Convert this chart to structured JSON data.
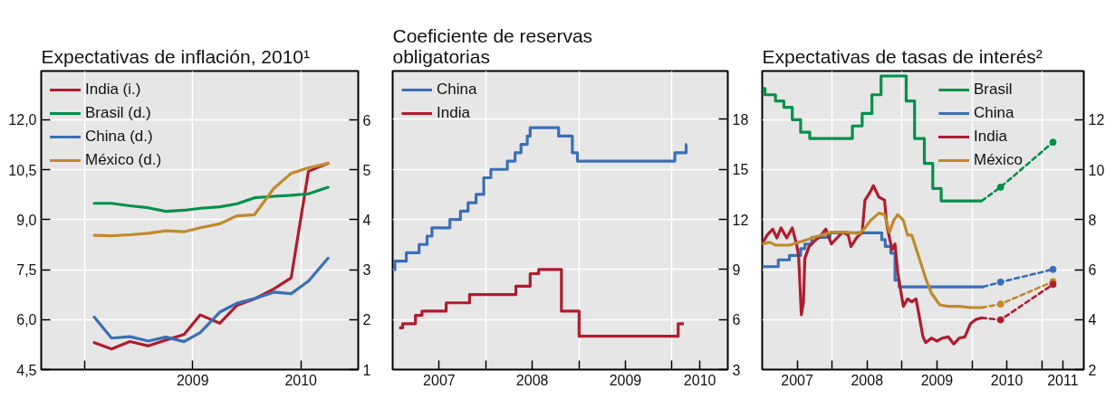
{
  "chart_data": [
    {
      "type": "line",
      "title": "Expectativas de inflación, 2010¹",
      "x": [
        2008.09,
        2008.25,
        2008.42,
        2008.59,
        2008.75,
        2008.92,
        2009.07,
        2009.25,
        2009.41,
        2009.57,
        2009.75,
        2009.91,
        2010.07,
        2010.25
      ],
      "xlim": [
        2007.6,
        2010.53
      ],
      "xticks": [
        {
          "value": 2008,
          "label": null
        },
        2009,
        2010
      ],
      "ylim": [
        4.5,
        13.46
      ],
      "yticks": [
        {
          "value": 4.5,
          "label": "4,5"
        },
        {
          "value": 6.0,
          "label": "6,0"
        },
        {
          "value": 7.5,
          "label": "7,5"
        },
        {
          "value": 9.0,
          "label": "9,0"
        },
        {
          "value": 10.5,
          "label": "10,5"
        },
        {
          "value": 12.0,
          "label": "12,0"
        }
      ],
      "y2lim": [
        1,
        6.98
      ],
      "y2ticks": [
        1,
        2,
        3,
        4,
        5,
        6
      ],
      "grid": true,
      "legend": "top left",
      "series": [
        {
          "name": "India (i.)",
          "color": "#b01c2e",
          "values": [
            5.31,
            5.12,
            5.34,
            5.21,
            5.38,
            5.55,
            6.14,
            5.89,
            6.43,
            6.62,
            6.92,
            7.25,
            10.45,
            10.69
          ]
        },
        {
          "name": "Brasil (d.)",
          "color": "#00904a",
          "axis": "y2",
          "values": [
            4.33,
            4.33,
            4.28,
            4.24,
            4.17,
            4.19,
            4.23,
            4.26,
            4.32,
            4.44,
            4.47,
            4.49,
            4.52,
            4.65
          ]
        },
        {
          "name": "China (d.)",
          "color": "#3a6fb7",
          "axis": "y2",
          "values": [
            2.05,
            1.63,
            1.66,
            1.57,
            1.65,
            1.56,
            1.74,
            2.15,
            2.33,
            2.42,
            2.55,
            2.52,
            2.77,
            3.23
          ]
        },
        {
          "name": "México (d.)",
          "color": "#c08a2c",
          "axis": "y2",
          "values": [
            3.69,
            3.68,
            3.7,
            3.73,
            3.78,
            3.76,
            3.84,
            3.92,
            4.08,
            4.1,
            4.63,
            4.93,
            5.04,
            5.13
          ]
        }
      ]
    },
    {
      "type": "step",
      "title": "Coeficiente de reservas\nobligatorias",
      "xlim": [
        2007.0,
        2010.6
      ],
      "xticks": [
        {
          "value": 2008,
          "label": null
        },
        {
          "value": 2009,
          "label": null
        },
        {
          "value": 2010,
          "label": null
        },
        {
          "value": 2007.5,
          "label": "2007"
        },
        {
          "value": 2008.5,
          "label": "2008"
        },
        {
          "value": 2009.5,
          "label": "2009"
        },
        {
          "value": 2010.3,
          "label": "2010"
        }
      ],
      "ylim": [
        3,
        20.9
      ],
      "yticks": [
        3,
        6,
        9,
        12,
        15,
        18
      ],
      "grid": true,
      "legend": "top left",
      "series": [
        {
          "name": "China",
          "color": "#3a6fb7",
          "x": [
            2007.015,
            2007.024,
            2007.147,
            2007.284,
            2007.37,
            2007.422,
            2007.615,
            2007.728,
            2007.81,
            2007.896,
            2007.979,
            2008.055,
            2008.232,
            2008.315,
            2008.379,
            2008.446,
            2008.477,
            2008.783,
            2008.93,
            2008.985,
            2010.031,
            2010.153,
            2010.159
          ],
          "values": [
            9.0,
            9.5,
            10.0,
            10.5,
            11.0,
            11.5,
            12.0,
            12.5,
            13.0,
            13.5,
            14.5,
            15.0,
            15.5,
            16.0,
            16.5,
            17.0,
            17.5,
            17.0,
            16.0,
            15.5,
            16.0,
            16.5,
            16.5
          ]
        },
        {
          "name": "India",
          "color": "#b01c2e",
          "x": [
            2007.07,
            2007.107,
            2007.245,
            2007.315,
            2007.575,
            2007.826,
            2008.324,
            2008.477,
            2008.569,
            2008.813,
            2009.003,
            2010.067,
            2010.128
          ],
          "values": [
            5.5,
            5.75,
            6.25,
            6.5,
            7.0,
            7.5,
            8.0,
            8.75,
            9.0,
            6.5,
            5.0,
            5.75,
            5.75
          ]
        }
      ]
    },
    {
      "type": "line",
      "title": "Expectativas de tasas de interés²",
      "xlim": [
        2007.0,
        2011.6
      ],
      "xticks": [
        {
          "value": 2008,
          "label": null
        },
        {
          "value": 2009,
          "label": null
        },
        {
          "value": 2010,
          "label": null
        },
        {
          "value": 2011,
          "label": null
        },
        {
          "value": 2007.5,
          "label": "2007"
        },
        {
          "value": 2008.5,
          "label": "2008"
        },
        {
          "value": 2009.5,
          "label": "2009"
        },
        {
          "value": 2010.5,
          "label": "2010"
        },
        {
          "value": 2011.3,
          "label": "2011"
        }
      ],
      "ylim": [
        2,
        13.95
      ],
      "yticks": [
        2,
        4,
        6,
        8,
        10,
        12
      ],
      "grid": true,
      "legend": "top",
      "series": [
        {
          "name": "Brasil",
          "type": "step",
          "color": "#00904a",
          "x": [
            2007.0,
            2007.04,
            2007.19,
            2007.31,
            2007.43,
            2007.55,
            2007.68,
            2008.29,
            2008.43,
            2008.57,
            2008.7,
            2009.06,
            2009.18,
            2009.32,
            2009.44,
            2009.56,
            2010.14
          ],
          "values": [
            13.25,
            13.0,
            12.75,
            12.5,
            12.0,
            11.5,
            11.25,
            11.75,
            12.25,
            13.0,
            13.75,
            12.75,
            11.25,
            10.25,
            9.25,
            8.75,
            8.75
          ]
        },
        {
          "name": "China",
          "type": "step",
          "color": "#3a6fb7",
          "x": [
            2007.0,
            2007.23,
            2007.39,
            2007.55,
            2007.61,
            2007.71,
            2007.97,
            2008.71,
            2008.76,
            2008.84,
            2008.9,
            2008.96,
            2010.16
          ],
          "values": [
            6.12,
            6.39,
            6.57,
            6.84,
            7.02,
            7.29,
            7.47,
            7.2,
            6.93,
            6.66,
            5.58,
            5.31,
            5.31
          ]
        },
        {
          "name": "India",
          "color": "#b01c2e",
          "x": [
            2007.0,
            2007.07,
            2007.15,
            2007.21,
            2007.27,
            2007.35,
            2007.43,
            2007.49,
            2007.52,
            2007.56,
            2007.59,
            2007.61,
            2007.67,
            2007.75,
            2007.83,
            2007.91,
            2007.99,
            2008.07,
            2008.15,
            2008.23,
            2008.27,
            2008.35,
            2008.43,
            2008.47,
            2008.55,
            2008.59,
            2008.67,
            2008.75,
            2008.78,
            2008.82,
            2008.86,
            2008.9,
            2008.94,
            2008.98,
            2009.02,
            2009.08,
            2009.14,
            2009.2,
            2009.24,
            2009.3,
            2009.34,
            2009.42,
            2009.5,
            2009.58,
            2009.66,
            2009.74,
            2009.82,
            2009.9,
            2009.98,
            2010.06,
            2010.14
          ],
          "values": [
            7.03,
            7.38,
            7.62,
            7.27,
            7.67,
            7.27,
            7.67,
            7.03,
            6.57,
            4.19,
            4.71,
            6.45,
            6.92,
            7.15,
            7.33,
            7.62,
            7.03,
            7.27,
            7.5,
            7.38,
            6.92,
            7.27,
            7.5,
            8.78,
            9.13,
            9.36,
            8.9,
            8.78,
            7.85,
            7.27,
            6.8,
            7.03,
            5.87,
            5.17,
            4.53,
            4.83,
            4.71,
            4.83,
            4.24,
            3.31,
            3.08,
            3.26,
            3.14,
            3.26,
            3.31,
            3.02,
            3.26,
            3.31,
            3.84,
            4.01,
            4.07
          ]
        },
        {
          "name": "México",
          "color": "#c08a2c",
          "x": [
            2007.0,
            2007.11,
            2007.19,
            2007.39,
            2007.59,
            2007.79,
            2007.99,
            2008.19,
            2008.39,
            2008.47,
            2008.55,
            2008.67,
            2008.75,
            2008.82,
            2008.88,
            2008.94,
            2009.02,
            2009.08,
            2009.14,
            2009.18,
            2009.26,
            2009.34,
            2009.42,
            2009.54,
            2009.66,
            2009.82,
            2009.98,
            2010.14
          ],
          "values": [
            7.03,
            7.09,
            6.98,
            6.98,
            7.15,
            7.33,
            7.5,
            7.5,
            7.44,
            7.67,
            7.97,
            8.26,
            8.2,
            7.5,
            7.97,
            8.2,
            7.97,
            7.38,
            7.38,
            7.03,
            6.34,
            5.64,
            5.06,
            4.59,
            4.53,
            4.53,
            4.48,
            4.48
          ]
        },
        {
          "color": "#00904a",
          "line_style": "dashed",
          "x": [
            2010.14,
            2010.41,
            2011.16
          ],
          "values": [
            8.75,
            9.3,
            11.1
          ]
        },
        {
          "color": "#3a6fb7",
          "line_style": "dashed",
          "x": [
            2010.16,
            2010.41,
            2011.16
          ],
          "values": [
            5.31,
            5.5,
            6.01
          ]
        },
        {
          "color": "#b01c2e",
          "line_style": "dashed",
          "x": [
            2010.14,
            2010.41,
            2011.16
          ],
          "values": [
            4.07,
            3.99,
            5.41
          ]
        },
        {
          "color": "#c08a2c",
          "line_style": "dashed",
          "x": [
            2010.14,
            2010.41,
            2011.16
          ],
          "values": [
            4.48,
            4.62,
            5.52
          ]
        },
        {
          "type": "scatter",
          "marker": "circle",
          "color": "#00904a",
          "x": [
            2010.41,
            2011.16
          ],
          "values": [
            9.3,
            11.1
          ]
        },
        {
          "type": "scatter",
          "marker": "circle",
          "color": "#3a6fb7",
          "x": [
            2010.41,
            2011.16
          ],
          "values": [
            5.5,
            6.01
          ]
        },
        {
          "type": "scatter",
          "marker": "circle",
          "color": "#c08a2c",
          "x": [
            2010.41,
            2011.16
          ],
          "values": [
            4.62,
            5.52
          ]
        },
        {
          "type": "scatter",
          "marker": "circle",
          "color": "#b01c2e",
          "x": [
            2010.41,
            2011.16
          ],
          "values": [
            3.99,
            5.41
          ]
        }
      ]
    }
  ]
}
